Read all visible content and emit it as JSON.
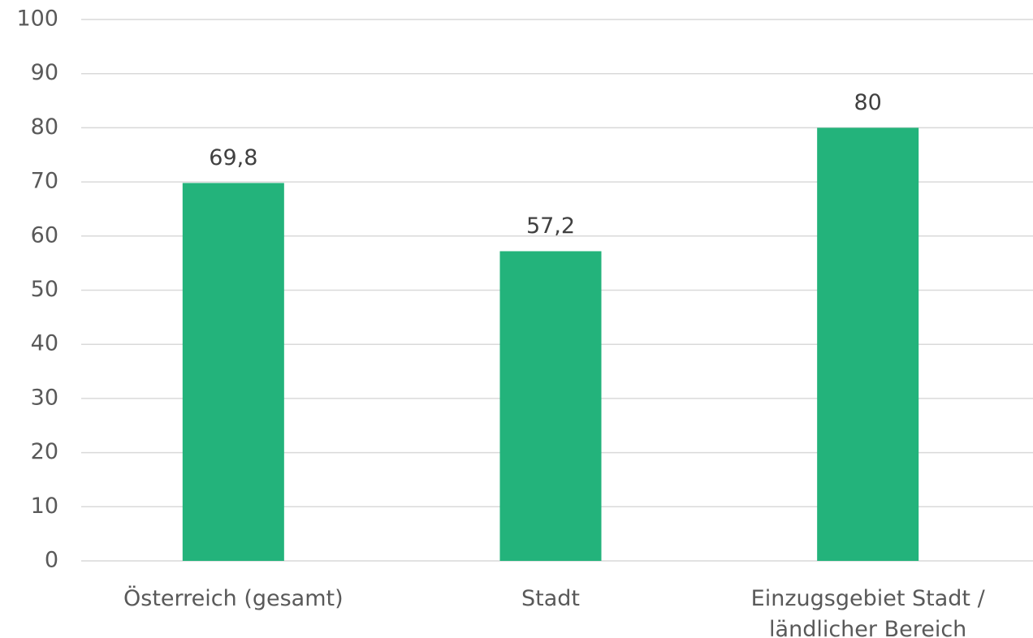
{
  "chart_data": {
    "type": "bar",
    "categories": [
      "Österreich (gesamt)",
      "Stadt",
      "Einzugsgebiet Stadt / ländlicher Bereich"
    ],
    "values": [
      69.8,
      57.2,
      80
    ],
    "value_labels": [
      "69,8",
      "57,2",
      "80"
    ],
    "color": "#23b37b",
    "ylim": [
      0,
      100
    ],
    "yticks": [
      0,
      10,
      20,
      30,
      40,
      50,
      60,
      70,
      80,
      90,
      100
    ],
    "grid": true
  }
}
